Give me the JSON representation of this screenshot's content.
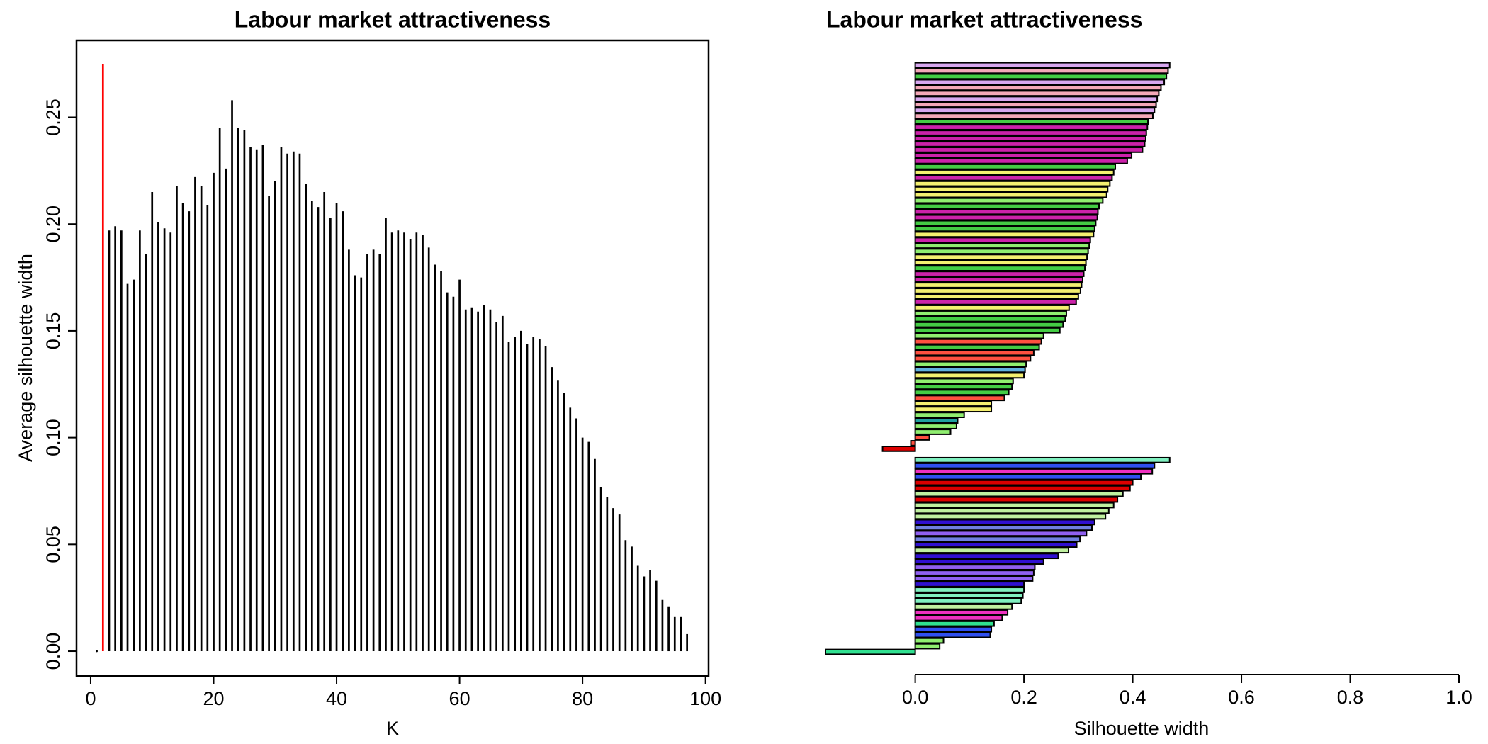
{
  "chart_data": [
    {
      "type": "needle",
      "title": "Labour market attractiveness",
      "xlabel": "K",
      "ylabel": "Average silhouette width",
      "color": "#000000",
      "highlight_x": 2,
      "highlight_color": "#ff0000",
      "x": [
        1,
        2,
        3,
        4,
        5,
        6,
        7,
        8,
        9,
        10,
        11,
        12,
        13,
        14,
        15,
        16,
        17,
        18,
        19,
        20,
        21,
        22,
        23,
        24,
        25,
        26,
        27,
        28,
        29,
        30,
        31,
        32,
        33,
        34,
        35,
        36,
        37,
        38,
        39,
        40,
        41,
        42,
        43,
        44,
        45,
        46,
        47,
        48,
        49,
        50,
        51,
        52,
        53,
        54,
        55,
        56,
        57,
        58,
        59,
        60,
        61,
        62,
        63,
        64,
        65,
        66,
        67,
        68,
        69,
        70,
        71,
        72,
        73,
        74,
        75,
        76,
        77,
        78,
        79,
        80,
        81,
        82,
        83,
        84,
        85,
        86,
        87,
        88,
        89,
        90,
        91,
        92,
        93,
        94,
        95,
        96,
        97
      ],
      "values": [
        0,
        0.275,
        0.197,
        0.199,
        0.197,
        0.172,
        0.174,
        0.197,
        0.186,
        0.215,
        0.201,
        0.198,
        0.196,
        0.218,
        0.21,
        0.206,
        0.222,
        0.218,
        0.209,
        0.224,
        0.245,
        0.226,
        0.258,
        0.245,
        0.244,
        0.236,
        0.235,
        0.237,
        0.213,
        0.22,
        0.236,
        0.233,
        0.234,
        0.233,
        0.219,
        0.211,
        0.208,
        0.215,
        0.203,
        0.21,
        0.206,
        0.188,
        0.176,
        0.175,
        0.186,
        0.188,
        0.186,
        0.203,
        0.196,
        0.197,
        0.196,
        0.193,
        0.196,
        0.195,
        0.189,
        0.181,
        0.178,
        0.168,
        0.166,
        0.174,
        0.16,
        0.161,
        0.159,
        0.162,
        0.16,
        0.154,
        0.157,
        0.145,
        0.147,
        0.15,
        0.144,
        0.147,
        0.146,
        0.143,
        0.133,
        0.127,
        0.121,
        0.114,
        0.109,
        0.1,
        0.098,
        0.09,
        0.077,
        0.072,
        0.067,
        0.064,
        0.052,
        0.049,
        0.04,
        0.035,
        0.038,
        0.033,
        0.024,
        0.021,
        0.016,
        0.016,
        0.008
      ],
      "xlim": [
        -2.3,
        100.5
      ],
      "xticks": [
        0,
        20,
        40,
        60,
        80,
        100
      ],
      "ylim": [
        -0.0116,
        0.286
      ],
      "yticks": [
        {
          "value": 0,
          "label": "0.00"
        },
        0.05,
        {
          "value": 0.1,
          "label": "0.10"
        },
        0.15,
        {
          "value": 0.2,
          "label": "0.20"
        },
        0.25
      ]
    },
    {
      "type": "silhouette",
      "title": "Labour market attractiveness",
      "xlabel": "Silhouette width",
      "xlim": [
        -0.165,
        1
      ],
      "xticks": [
        {
          "value": 0,
          "label": "0.0"
        },
        0.2,
        0.4,
        0.6,
        0.8,
        {
          "value": 1,
          "label": "1.0"
        }
      ],
      "groups": [
        {
          "values": [
            0.468,
            0.465,
            0.462,
            0.458,
            0.452,
            0.448,
            0.445,
            0.443,
            0.44,
            0.437,
            0.428,
            0.427,
            0.425,
            0.424,
            0.422,
            0.418,
            0.398,
            0.39,
            0.368,
            0.365,
            0.362,
            0.358,
            0.354,
            0.352,
            0.345,
            0.338,
            0.336,
            0.335,
            0.332,
            0.33,
            0.328,
            0.322,
            0.32,
            0.318,
            0.316,
            0.314,
            0.312,
            0.31,
            0.308,
            0.306,
            0.304,
            0.3,
            0.296,
            0.283,
            0.278,
            0.276,
            0.272,
            0.266,
            0.236,
            0.232,
            0.228,
            0.218,
            0.212,
            0.204,
            0.202,
            0.2,
            0.18,
            0.178,
            0.172,
            0.164,
            0.14,
            0.14,
            0.09,
            0.078,
            0.076,
            0.065,
            0.026,
            -0.008,
            -0.06
          ],
          "colors": [
            "#d8a8f0",
            "#f4a8b8",
            "#44cc44",
            "#d8a8f0",
            "#f4a8b8",
            "#f4a8b8",
            "#d8a8f0",
            "#f4a8b8",
            "#d8a8f0",
            "#f4a8b8",
            "#44cc44",
            "#cc22aa",
            "#cc22aa",
            "#cc22aa",
            "#cc22aa",
            "#cc22aa",
            "#cc22aa",
            "#cc22aa",
            "#44cc44",
            "#f4f070",
            "#cc22aa",
            "#f4f070",
            "#f4f070",
            "#f4f070",
            "#90ee70",
            "#44cc44",
            "#cc22aa",
            "#cc22aa",
            "#44cc44",
            "#44cc44",
            "#f4f070",
            "#cc22aa",
            "#90ee70",
            "#90ee70",
            "#f4f070",
            "#f4f070",
            "#44cc44",
            "#cc22aa",
            "#cc22aa",
            "#f4f070",
            "#f4f070",
            "#f4f070",
            "#cc22aa",
            "#f4f070",
            "#90ee70",
            "#44cc44",
            "#44cc44",
            "#44cc44",
            "#90ee70",
            "#ff5040",
            "#44cc44",
            "#ff5040",
            "#ff5040",
            "#90ee70",
            "#60b0e0",
            "#f4f070",
            "#90ee70",
            "#44cc44",
            "#44cc44",
            "#ff5040",
            "#f4f070",
            "#f4f070",
            "#90ee70",
            "#20a0a0",
            "#90ee70",
            "#90ee70",
            "#ff5040",
            "#ff5040",
            "#dd0000"
          ]
        },
        {
          "values": [
            0.468,
            0.44,
            0.436,
            0.415,
            0.4,
            0.395,
            0.382,
            0.372,
            0.365,
            0.356,
            0.35,
            0.33,
            0.325,
            0.315,
            0.303,
            0.297,
            0.282,
            0.263,
            0.236,
            0.22,
            0.218,
            0.216,
            0.2,
            0.2,
            0.198,
            0.195,
            0.178,
            0.17,
            0.16,
            0.145,
            0.14,
            0.138,
            0.052,
            0.045,
            -0.165
          ],
          "colors": [
            "#80f0c0",
            "#3050f0",
            "#ee30c0",
            "#3050f0",
            "#dd0000",
            "#dd0000",
            "#c0f0a0",
            "#dd0000",
            "#c0f0a0",
            "#c0f0a0",
            "#c0f0a0",
            "#3010d0",
            "#7080e0",
            "#9060f0",
            "#7080e0",
            "#3010d0",
            "#c0f0a0",
            "#3010d0",
            "#3010d0",
            "#9060f0",
            "#9060f0",
            "#9060f0",
            "#3010d0",
            "#80f0c0",
            "#80f0c0",
            "#80f0c0",
            "#c0f0a0",
            "#ee30c0",
            "#ee30c0",
            "#30e090",
            "#3050f0",
            "#3050f0",
            "#90ee70",
            "#90ee70",
            "#30e090"
          ]
        }
      ]
    }
  ]
}
